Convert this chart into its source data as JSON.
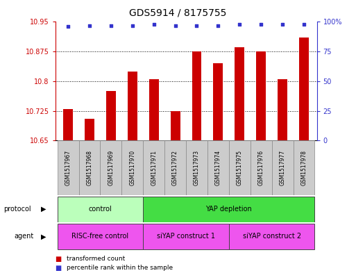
{
  "title": "GDS5914 / 8175755",
  "samples": [
    "GSM1517967",
    "GSM1517968",
    "GSM1517969",
    "GSM1517970",
    "GSM1517971",
    "GSM1517972",
    "GSM1517973",
    "GSM1517974",
    "GSM1517975",
    "GSM1517976",
    "GSM1517977",
    "GSM1517978"
  ],
  "bar_values": [
    10.73,
    10.705,
    10.775,
    10.825,
    10.805,
    10.725,
    10.875,
    10.845,
    10.885,
    10.875,
    10.805,
    10.91
  ],
  "percentile_values": [
    96,
    97,
    97,
    97,
    98,
    97,
    97,
    97,
    98,
    98,
    98,
    98
  ],
  "ylim_left": [
    10.65,
    10.95
  ],
  "ylim_right": [
    0,
    100
  ],
  "yticks_left": [
    10.65,
    10.725,
    10.8,
    10.875,
    10.95
  ],
  "ytick_labels_left": [
    "10.65",
    "10.725",
    "10.8",
    "10.875",
    "10.95"
  ],
  "yticks_right": [
    0,
    25,
    50,
    75,
    100
  ],
  "ytick_labels_right": [
    "0",
    "25",
    "50",
    "75",
    "100%"
  ],
  "bar_color": "#cc0000",
  "dot_color": "#3333cc",
  "bar_bottom": 10.65,
  "bar_width": 0.45,
  "prot_groups": [
    {
      "label": "control",
      "start": 0,
      "end": 3,
      "color": "#bbffbb"
    },
    {
      "label": "YAP depletion",
      "start": 4,
      "end": 11,
      "color": "#44dd44"
    }
  ],
  "agent_groups": [
    {
      "label": "RISC-free control",
      "start": 0,
      "end": 3,
      "color": "#ee55ee"
    },
    {
      "label": "siYAP construct 1",
      "start": 4,
      "end": 7,
      "color": "#ee55ee"
    },
    {
      "label": "siYAP construct 2",
      "start": 8,
      "end": 11,
      "color": "#ee55ee"
    }
  ],
  "sample_bg_color": "#cccccc",
  "sample_edge_color": "#888888",
  "legend_items": [
    {
      "label": "transformed count",
      "color": "#cc0000"
    },
    {
      "label": "percentile rank within the sample",
      "color": "#3333cc"
    }
  ],
  "protocol_label": "protocol",
  "agent_label": "agent",
  "tick_color_left": "#cc0000",
  "tick_color_right": "#3333cc",
  "title_fontsize": 10,
  "label_fontsize": 7,
  "sample_fontsize": 5.5
}
